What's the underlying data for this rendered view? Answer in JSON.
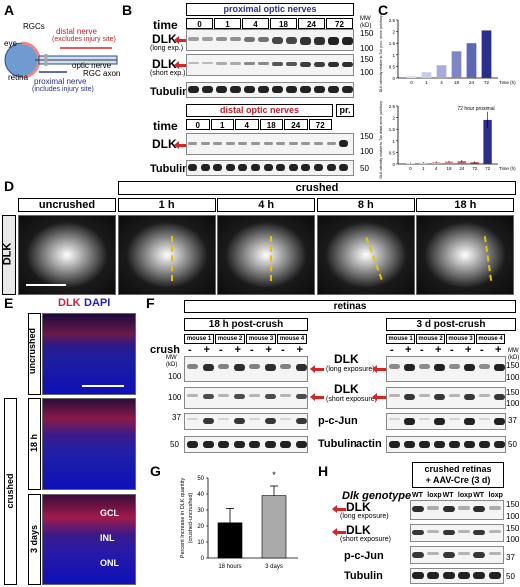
{
  "panels": [
    "A",
    "B",
    "C",
    "D",
    "E",
    "F",
    "G",
    "H"
  ],
  "A": {
    "eye": "eye",
    "retina": "retina",
    "rgcs": "RGCs",
    "optic_nerve": "optic nerve",
    "rgc_axon": "RGC axon",
    "distal": "distal nerve",
    "distal_sub": "(excludes injury site)",
    "proximal": "proximal nerve",
    "proximal_sub": "(includes injury site)"
  },
  "B": {
    "proximal_title": "proximal optic nerves",
    "distal_title": "distal optic nerves",
    "time_label": "time",
    "times": [
      "0",
      "1",
      "4",
      "18",
      "24",
      "72"
    ],
    "pr": "pr.",
    "mw": "MW\n(kD)",
    "dlk": "DLK",
    "long_exp": "(long exp.)",
    "short_exp": "(short exp.)",
    "tubulin": "Tubulin",
    "mw150": "150",
    "mw100": "100",
    "mw50": "50",
    "star": "*"
  },
  "C": {
    "ylabel_top": "DLK intensity relative to Tub\nprox. nerve (arbitrary units)",
    "ylabel_bottom": "DLK intensity relative to Tub\ndistal nerve (arbitrary units)",
    "xlabel": "Time (h)",
    "annotation": "72 hour proximal"
  },
  "chart_data": [
    {
      "type": "bar",
      "categories": [
        "0",
        "1",
        "4",
        "18",
        "24",
        "72"
      ],
      "series": [
        {
          "values": [
            0.1,
            0.25,
            0.55,
            1.15,
            1.5,
            2.05
          ]
        }
      ],
      "ylim": [
        0,
        2.5
      ],
      "yticks": [
        "0",
        "0.5",
        "1",
        "1.5",
        "2",
        "2.5"
      ],
      "xlabel": "Time (h)",
      "ylabel": "DLK intensity relative to Tub prox. nerve (arbitrary units)"
    },
    {
      "type": "bar",
      "categories": [
        "0",
        "1",
        "4",
        "18",
        "24",
        "72",
        "72"
      ],
      "series": [
        {
          "values": [
            0.04,
            0.06,
            0.08,
            0.1,
            0.12,
            0.07,
            1.9
          ],
          "errors": [
            0.02,
            0.02,
            0.03,
            0.04,
            0.05,
            0.04,
            0.35
          ]
        }
      ],
      "ylim": [
        0,
        2.5
      ],
      "yticks": [
        "0",
        "0.5",
        "1",
        "1.5",
        "2",
        "2.5"
      ],
      "xlabel": "Time (h)",
      "ylabel": "DLK intensity relative to Tub distal nerve (arbitrary units)",
      "annotation": "72 hour proximal"
    },
    {
      "type": "bar",
      "categories": [
        "18 hours",
        "3 days"
      ],
      "values": [
        22,
        39
      ],
      "errors": [
        9,
        6
      ],
      "ylim": [
        0,
        50
      ],
      "yticks": [
        "0",
        "10",
        "20",
        "30",
        "40",
        "50"
      ],
      "ylabel": "Percent Increase in DLK quantity (crushed-uncrushed)"
    }
  ],
  "D": {
    "crushed": "crushed",
    "columns": [
      "uncrushed",
      "1 h",
      "4 h",
      "8 h",
      "18 h"
    ],
    "row": "DLK"
  },
  "E": {
    "dlk": "DLK",
    "dapi": "DAPI",
    "uncrushed": "uncrushed",
    "crushed": "crushed",
    "t18": "18 h",
    "t3d": "3 days",
    "gcl": "GCL",
    "inl": "INL",
    "onl": "ONL"
  },
  "F": {
    "title": "retinas",
    "left_title": "18 h  post-crush",
    "right_title": "3 d  post-crush",
    "mice": [
      "mouse 1",
      "mouse 2",
      "mouse 3",
      "mouse 4"
    ],
    "crush": "crush",
    "minus": "-",
    "plus": "+",
    "dlk": "DLK",
    "long_exp": "(long exposure)",
    "short_exp": "(short exposure)",
    "pcjun": "p-c-Jun",
    "tubulin": "Tubulin",
    "actin": "actin",
    "mw": "MW\n(kD)",
    "mw150": "150",
    "mw100": "100",
    "mw37": "37",
    "mw50": "50",
    "star": "*"
  },
  "G": {
    "ylabel": "Percent Increase in DLK quantity\n(crushed-uncrushed)",
    "cats": [
      "18 hours",
      "3 days"
    ],
    "star": "*"
  },
  "H": {
    "title_line1": "crushed retinas",
    "title_line2": "+ AAV-Cre (3 d)",
    "genotype": "Dlk genotype",
    "genos": [
      "WT",
      "loxp",
      "WT",
      "loxp",
      "WT",
      "loxp"
    ],
    "dlk": "DLK",
    "long_exp": "(long exposure)",
    "short_exp": "(short exposure)",
    "pcjun": "p-c-Jun",
    "tubulin": "Tubulin",
    "mw150": "150",
    "mw100": "100",
    "mw37": "37",
    "mw50": "50",
    "star": "*"
  },
  "colors": {
    "proximal": "#2a2f8f",
    "distal": "#c8202a",
    "arrow": "#d22222",
    "dapi": "#2222cc",
    "dlk": "#cc2244"
  }
}
